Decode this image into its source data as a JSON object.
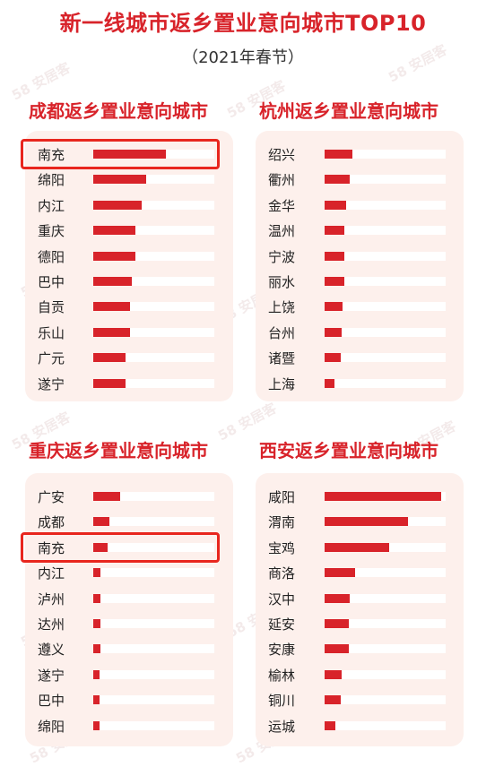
{
  "header": {
    "title": "新一线城市返乡置业意向城市TOP10",
    "subtitle": "（2021年春节）"
  },
  "watermark_text": "58 安居客",
  "colors": {
    "accent": "#d8232a",
    "card": "#fdf0ec",
    "highlight": "#e8261e"
  },
  "chart_data": [
    {
      "type": "bar",
      "orientation": "horizontal",
      "title": "成都返乡置业意向城市",
      "categories": [
        "南充",
        "绵阳",
        "内江",
        "重庆",
        "德阳",
        "巴中",
        "自贡",
        "乐山",
        "广元",
        "遂宁"
      ],
      "values": [
        0.6,
        0.44,
        0.4,
        0.35,
        0.35,
        0.32,
        0.3,
        0.3,
        0.27,
        0.27
      ],
      "highlighted": "南充"
    },
    {
      "type": "bar",
      "orientation": "horizontal",
      "title": "杭州返乡置业意向城市",
      "categories": [
        "绍兴",
        "衢州",
        "金华",
        "温州",
        "宁波",
        "丽水",
        "上饶",
        "台州",
        "诸暨",
        "上海"
      ],
      "values": [
        0.23,
        0.21,
        0.18,
        0.16,
        0.16,
        0.16,
        0.15,
        0.14,
        0.13,
        0.08
      ]
    },
    {
      "type": "bar",
      "orientation": "horizontal",
      "title": "重庆返乡置业意向城市",
      "categories": [
        "广安",
        "成都",
        "南充",
        "内江",
        "泸州",
        "达州",
        "遵义",
        "遂宁",
        "巴中",
        "绵阳"
      ],
      "values": [
        0.22,
        0.13,
        0.12,
        0.06,
        0.06,
        0.06,
        0.06,
        0.05,
        0.05,
        0.05
      ],
      "highlighted": "南充"
    },
    {
      "type": "bar",
      "orientation": "horizontal",
      "title": "西安返乡置业意向城市",
      "categories": [
        "咸阳",
        "渭南",
        "宝鸡",
        "商洛",
        "汉中",
        "延安",
        "安康",
        "榆林",
        "铜川",
        "运城"
      ],
      "values": [
        0.96,
        0.69,
        0.53,
        0.25,
        0.21,
        0.2,
        0.2,
        0.14,
        0.13,
        0.09
      ]
    }
  ]
}
